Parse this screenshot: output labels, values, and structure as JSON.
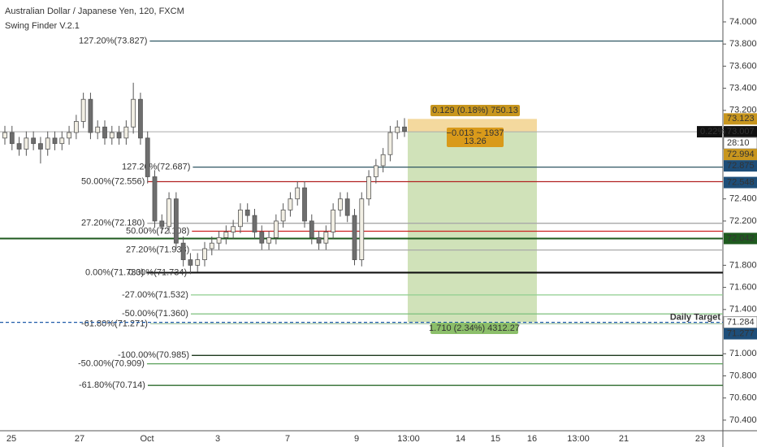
{
  "chart_data": {
    "type": "candlestick",
    "title": "Australian Dollar / Japanese Yen, 120, FXCM",
    "subtitle": "Swing Finder V.2.1",
    "ylim": [
      70.304,
      74.198
    ],
    "yticks": [
      {
        "value": 74.0,
        "label": "74.000"
      },
      {
        "value": 73.8,
        "label": "73.800"
      },
      {
        "value": 73.6,
        "label": "73.600"
      },
      {
        "value": 73.4,
        "label": "73.400"
      },
      {
        "value": 73.2,
        "label": "73.200"
      },
      {
        "value": 72.4,
        "label": "72.400"
      },
      {
        "value": 72.2,
        "label": "72.200"
      },
      {
        "value": 71.8,
        "label": "71.800"
      },
      {
        "value": 71.6,
        "label": "71.600"
      },
      {
        "value": 71.4,
        "label": "71.400"
      },
      {
        "value": 71.0,
        "label": "71.000"
      },
      {
        "value": 70.8,
        "label": "70.800"
      },
      {
        "value": 70.6,
        "label": "70.600"
      },
      {
        "value": 70.4,
        "label": "70.400"
      }
    ],
    "xticks": [
      "25",
      "27",
      "Oct",
      "3",
      "7",
      "9",
      "13:00",
      "14",
      "15",
      "16",
      "13:00",
      "21",
      "23"
    ],
    "open": [
      72.95,
      73.0,
      72.9,
      72.85,
      72.95,
      72.9,
      72.85,
      72.95,
      72.9,
      72.95,
      73.0,
      73.1,
      73.3,
      73.0,
      73.05,
      72.95,
      73.0,
      72.95,
      73.05,
      73.3,
      72.95,
      72.6,
      72.2,
      72.15,
      72.4,
      72.0,
      71.85,
      71.8,
      71.85,
      71.95,
      72.0,
      72.05,
      72.1,
      72.15,
      72.3,
      72.25,
      72.1,
      72.0,
      72.05,
      72.2,
      72.3,
      72.4,
      72.5,
      72.2,
      72.05,
      72.0,
      72.1,
      72.3,
      72.4,
      72.25,
      71.85,
      72.4,
      72.6,
      72.7,
      72.8,
      73.0,
      73.05
    ],
    "high": [
      73.06,
      73.06,
      72.96,
      73.01,
      73.01,
      72.96,
      73.01,
      73.01,
      73.01,
      73.06,
      73.16,
      73.36,
      73.36,
      73.11,
      73.11,
      73.06,
      73.06,
      73.11,
      73.45,
      73.36,
      73.01,
      72.66,
      72.26,
      72.46,
      72.46,
      72.06,
      71.91,
      71.91,
      72.01,
      72.06,
      72.11,
      72.16,
      72.21,
      72.36,
      72.36,
      72.31,
      72.16,
      72.11,
      72.26,
      72.36,
      72.46,
      72.56,
      72.56,
      72.26,
      72.11,
      72.16,
      72.36,
      72.46,
      72.46,
      72.31,
      72.46,
      72.66,
      72.76,
      72.86,
      73.06,
      73.11,
      73.13
    ],
    "low": [
      72.89,
      72.84,
      72.79,
      72.79,
      72.84,
      72.72,
      72.79,
      72.84,
      72.84,
      72.89,
      72.94,
      73.04,
      72.94,
      72.94,
      72.89,
      72.89,
      72.89,
      72.89,
      72.99,
      72.89,
      72.54,
      72.14,
      72.09,
      72.09,
      71.94,
      71.79,
      71.72,
      71.74,
      71.79,
      71.89,
      71.94,
      71.99,
      72.04,
      72.09,
      72.19,
      72.04,
      71.94,
      71.94,
      71.99,
      72.14,
      72.24,
      72.34,
      72.14,
      71.99,
      71.94,
      71.94,
      72.04,
      72.24,
      72.19,
      71.8,
      71.79,
      72.34,
      72.54,
      72.64,
      72.74,
      72.94,
      72.96
    ],
    "close": [
      73.0,
      72.9,
      72.85,
      72.95,
      72.9,
      72.85,
      72.95,
      72.9,
      72.95,
      73.0,
      73.1,
      73.3,
      73.0,
      73.05,
      72.95,
      73.0,
      72.95,
      73.05,
      73.3,
      72.95,
      72.6,
      72.2,
      72.15,
      72.4,
      72.0,
      71.85,
      71.8,
      71.85,
      71.95,
      72.0,
      72.05,
      72.1,
      72.15,
      72.3,
      72.25,
      72.1,
      72.0,
      72.05,
      72.2,
      72.3,
      72.4,
      72.5,
      72.2,
      72.05,
      72.0,
      72.1,
      72.3,
      72.4,
      72.25,
      71.85,
      72.4,
      72.6,
      72.7,
      72.8,
      73.0,
      73.05,
      73.01
    ],
    "up_color": "#f2efe4",
    "down_color": "#6e6e6e",
    "levels": [
      {
        "label": "127.20%(73.827)",
        "value": 73.827,
        "color": "#2f5662"
      },
      {
        "label": "127.20%(72.687)",
        "value": 72.687,
        "color": "#2f5662"
      },
      {
        "label": "50.00%(72.556)",
        "value": 72.556,
        "color": "#b22222"
      },
      {
        "label": "27.20%(72.180)",
        "value": 72.18,
        "color": "#a9a9a9"
      },
      {
        "label": "50.00%(72.108)",
        "value": 72.108,
        "color": "#cc2222"
      },
      {
        "label": "27.20%(71.938)",
        "value": 71.938,
        "color": "#a9a9a9"
      },
      {
        "label": "0.00%(71.733)",
        "value": 71.733,
        "color": "#111111"
      },
      {
        "label": "0.00%(71.734)",
        "value": 71.734,
        "color": "#111111"
      },
      {
        "label": "-27.00%(71.532)",
        "value": 71.532,
        "color": "#8fce8f"
      },
      {
        "label": "-50.00%(71.360)",
        "value": 71.36,
        "color": "#7cbf7c"
      },
      {
        "label": "-61.80%(71.271)",
        "value": 71.271,
        "color": "#a8c8a8"
      },
      {
        "label": "-100.00%(70.985)",
        "value": 70.985,
        "color": "#1f3a1f"
      },
      {
        "label": "-50.00%(70.909)",
        "value": 70.909,
        "color": "#5aa05a"
      },
      {
        "label": "-61.80%(70.714)",
        "value": 70.714,
        "color": "#2e6b2e"
      }
    ],
    "daily_target": {
      "label": "Daily Target",
      "value": 71.284,
      "color": "#1f5aa8"
    },
    "support": {
      "value": 72.042,
      "color": "#1e5a1e"
    },
    "price_labels": [
      {
        "label": 73.123,
        "color": "#c8961e"
      },
      {
        "label": 73.007,
        "change": "0.22%",
        "color": "#111111"
      },
      {
        "text": "28:10",
        "color": "#ffffff"
      },
      {
        "label": 72.994,
        "color": "#c8961e"
      },
      {
        "label": 72.875,
        "color": "#1e4e79"
      },
      {
        "label": 72.548,
        "color": "#1e4e79"
      },
      {
        "label": 72.042,
        "color": "#1e5a1e"
      },
      {
        "label": 71.284,
        "color": "#ffffff"
      },
      {
        "label": 71.277,
        "color": "#1e4e79"
      }
    ],
    "position": {
      "entry": 73.007,
      "stop": 73.123,
      "target": 71.284,
      "stop_label": "0.129 (0.18%) 750.13",
      "mid_label": [
        "−0.013 ~ 1937",
        "13.26"
      ],
      "target_label": "1.710 (2.34%) 4312.27"
    }
  }
}
